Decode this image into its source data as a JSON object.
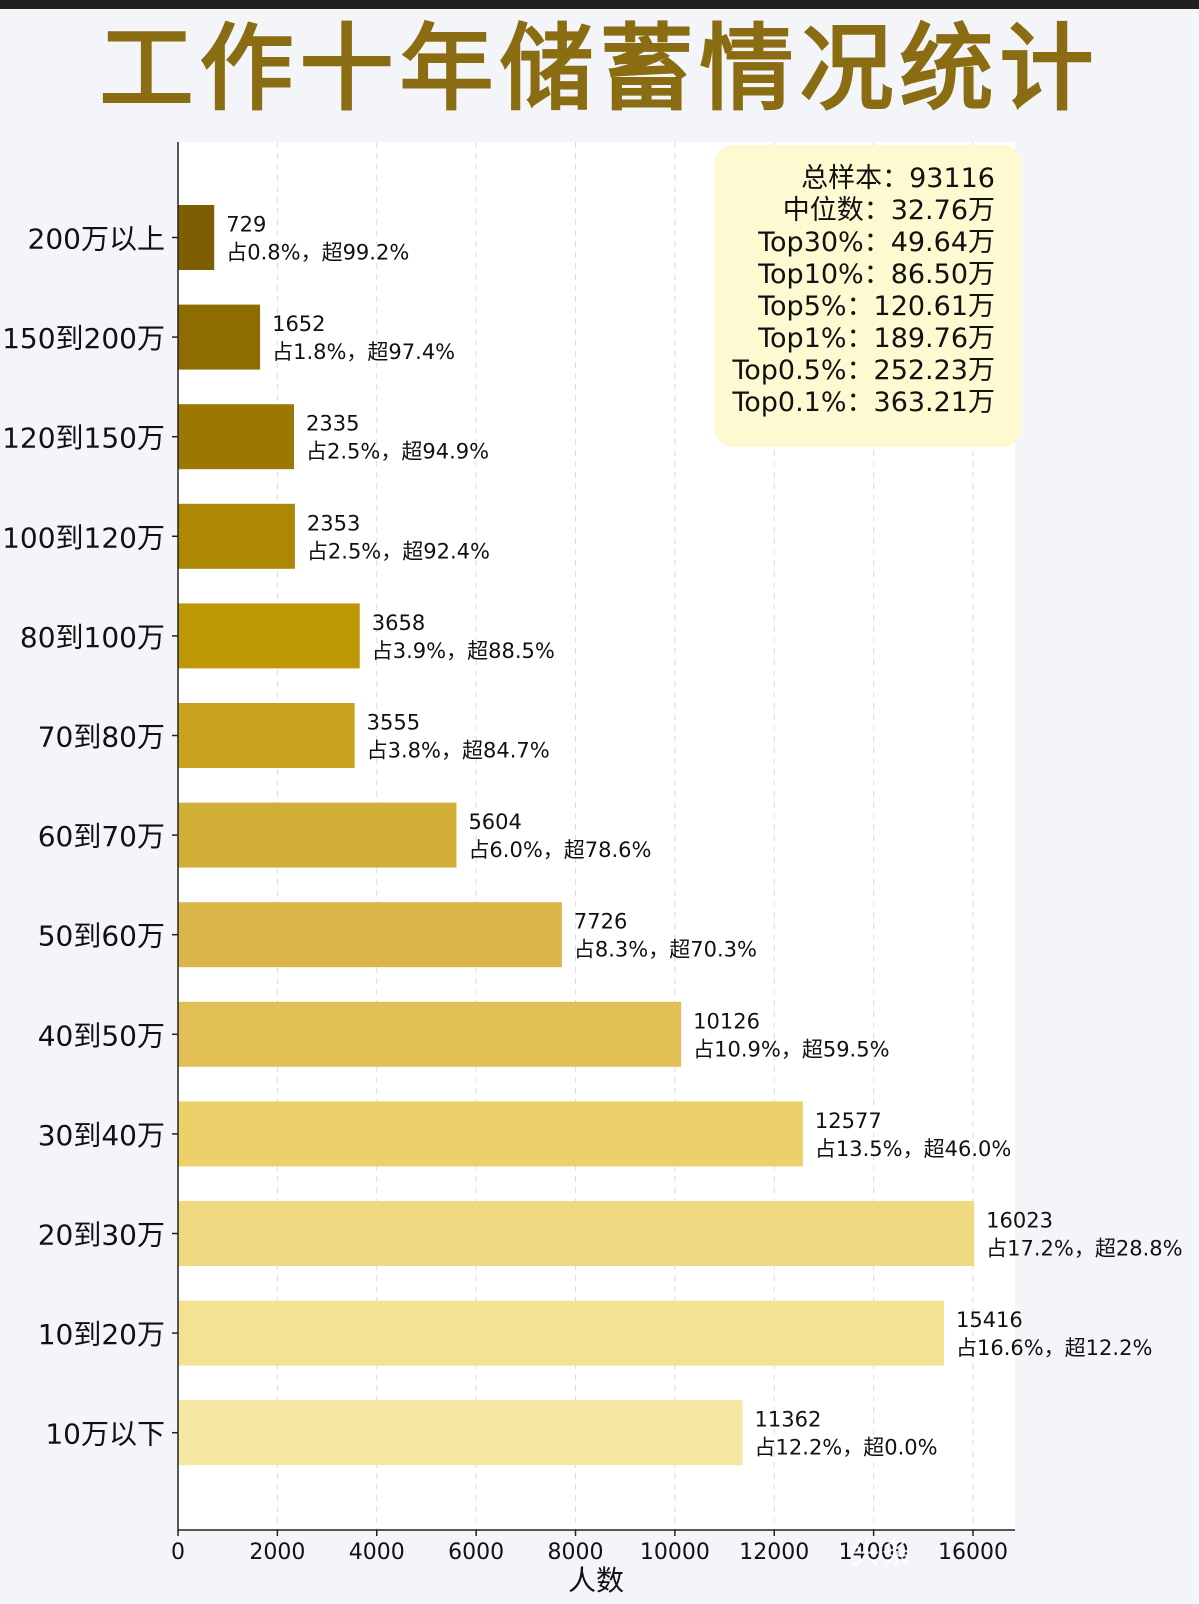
{
  "title": "工作十年储蓄情况统计",
  "chart_data": {
    "type": "bar",
    "orientation": "horizontal",
    "title": "工作十年储蓄情况统计",
    "xlabel": "人数",
    "ylabel": "",
    "xlim": [
      0,
      16800
    ],
    "xticks": [
      0,
      2000,
      4000,
      6000,
      8000,
      10000,
      12000,
      14000,
      16000
    ],
    "grid": "vertical dashed",
    "categories": [
      "200万以上",
      "150到200万",
      "120到150万",
      "100到120万",
      "80到100万",
      "70到80万",
      "60到70万",
      "50到60万",
      "40到50万",
      "30到40万",
      "20到30万",
      "10到20万",
      "10万以下"
    ],
    "values": [
      729,
      1652,
      2335,
      2353,
      3658,
      3555,
      5604,
      7726,
      10126,
      12577,
      16023,
      15416,
      11362
    ],
    "value_labels": [
      "729",
      "1652",
      "2335",
      "2353",
      "3658",
      "3555",
      "5604",
      "7726",
      "10126",
      "12577",
      "16023",
      "15416",
      "11362"
    ],
    "share_labels": [
      "占0.8%，超99.2%",
      "占1.8%，超97.4%",
      "占2.5%，超94.9%",
      "占2.5%，超92.4%",
      "占3.9%，超88.5%",
      "占3.8%，超84.7%",
      "占6.0%，超78.6%",
      "占8.3%，超70.3%",
      "占10.9%，超59.5%",
      "占13.5%，超46.0%",
      "占17.2%，超28.8%",
      "占16.6%，超12.2%",
      "占12.2%，超0.0%"
    ],
    "colors": [
      "#7d5e03",
      "#8e6c02",
      "#9c7803",
      "#ad8804",
      "#bf9806",
      "#c7a320",
      "#d1ae35",
      "#dab648",
      "#e3c056",
      "#ecd06a",
      "#f0da81",
      "#f4e293",
      "#f6e7a3"
    ]
  },
  "summary": {
    "lines": [
      "总样本：93116",
      "中位数：32.76万",
      "Top30%：49.64万",
      "Top10%：86.50万",
      "Top5%：120.61万",
      "Top1%：189.76万",
      "Top0.5%：252.23万",
      "Top0.1%：363.21万"
    ]
  },
  "watermark": "头条"
}
